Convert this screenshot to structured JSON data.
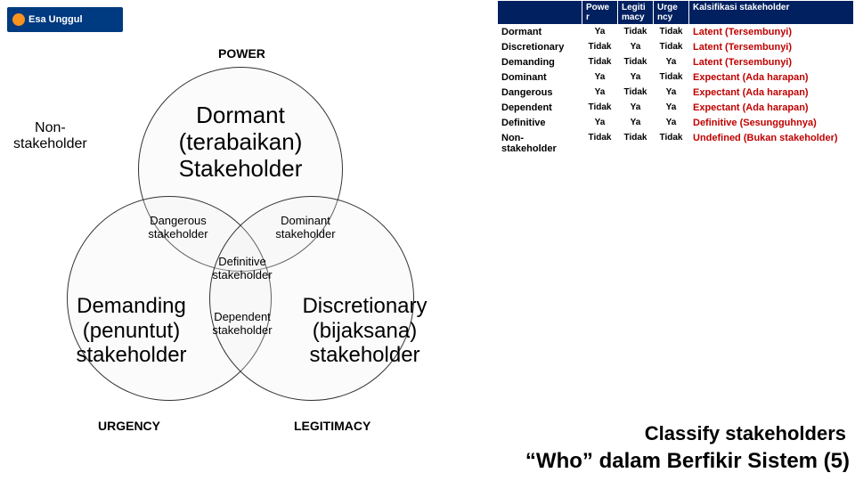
{
  "logo": {
    "text": "Esa Unggul"
  },
  "venn": {
    "labels": {
      "power": "POWER",
      "urgency": "URGENCY",
      "legitimacy": "LEGITIMACY",
      "nonstakeholder": "Non-\nstakeholder",
      "dormant": "Dormant\n(terabaikan)\nStakeholder",
      "dangerous": "Dangerous\nstakeholder",
      "dominant": "Dominant\nstakeholder",
      "definitive": "Definitive\nstakeholder",
      "demanding": "Demanding\n(penuntut)\nstakeholder",
      "discretionary": "Discretionary\n(bijaksana)\nstakeholder",
      "dependent": "Dependent\nstakeholder"
    },
    "colors": {
      "circle_border": "#333333",
      "circle_fill": "rgba(240,240,240,0.25)"
    }
  },
  "table": {
    "headers": [
      "",
      "Powe r",
      "Legiti macy",
      "Urge ncy",
      "Kalsifikasi stakeholder"
    ],
    "rows": [
      {
        "name": "Dormant",
        "p": "Ya",
        "l": "Tidak",
        "u": "Tidak",
        "k": "Latent (Tersembunyi)"
      },
      {
        "name": "Discretionary",
        "p": "Tidak",
        "l": "Ya",
        "u": "Tidak",
        "k": "Latent (Tersembunyi)"
      },
      {
        "name": "Demanding",
        "p": "Tidak",
        "l": "Tidak",
        "u": "Ya",
        "k": "Latent (Tersembunyi)"
      },
      {
        "name": "Dominant",
        "p": "Ya",
        "l": "Ya",
        "u": "Tidak",
        "k": "Expectant (Ada harapan)"
      },
      {
        "name": "Dangerous",
        "p": "Ya",
        "l": "Tidak",
        "u": "Ya",
        "k": "Expectant (Ada harapan)"
      },
      {
        "name": "Dependent",
        "p": "Tidak",
        "l": "Ya",
        "u": "Ya",
        "k": "Expectant (Ada harapan)"
      },
      {
        "name": "Definitive",
        "p": "Ya",
        "l": "Ya",
        "u": "Ya",
        "k": "Definitive (Sesungguhnya)"
      },
      {
        "name": "Non-stakeholder",
        "p": "Tidak",
        "l": "Tidak",
        "u": "Tidak",
        "k": "Undefined (Bukan stakeholder)"
      }
    ],
    "header_bg": "#002060",
    "header_fg": "#ffffff",
    "klas_color": "#c00000"
  },
  "footer": {
    "line1": "Classify stakeholders",
    "line2": "“Who” dalam Berfikir Sistem (5)"
  }
}
